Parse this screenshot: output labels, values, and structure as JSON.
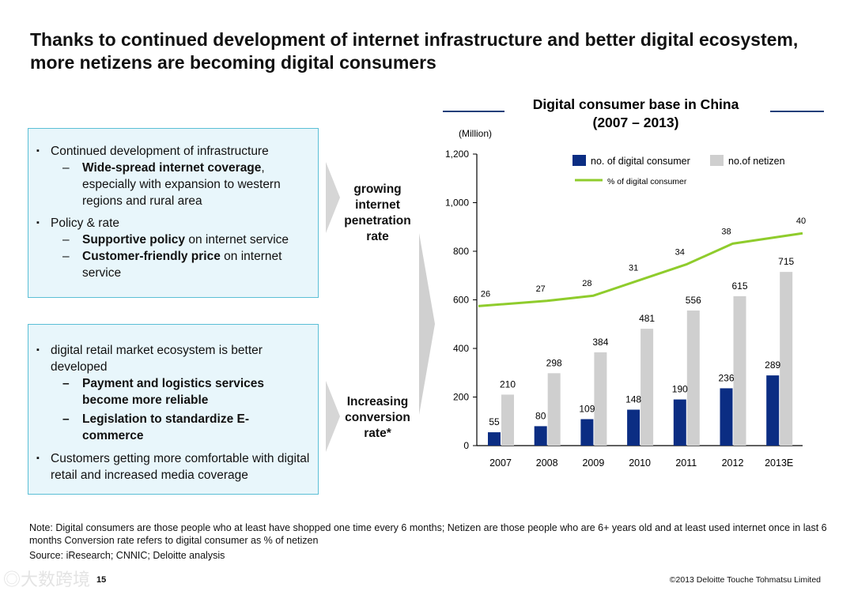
{
  "title": "Thanks to continued  development of internet infrastructure and better digital ecosystem, more netizens are becoming digital consumers",
  "box1": {
    "b1": "Continued development of infrastructure",
    "s1_bold": "Wide-spread internet coverage",
    "s1_rest": ", especially with expansion to western regions and rural area",
    "b2": "Policy & rate",
    "s2_bold": "Supportive policy",
    "s2_rest": " on internet service",
    "s3_bold": "Customer-friendly price",
    "s3_rest": " on internet service"
  },
  "box2": {
    "b1": "digital retail market ecosystem is better developed",
    "s1": "Payment and logistics services become more reliable",
    "s2": "Legislation to standardize E-commerce",
    "b2": "Customers getting more comfortable with digital retail and increased media coverage"
  },
  "arrow_labels": [
    "growing internet penetration rate",
    "Increasing conversion rate*"
  ],
  "chart_data": {
    "type": "bar",
    "title": "Digital consumer base  in China",
    "subtitle": "(2007 – 2013)",
    "ylabel": "(Million)",
    "ylim": [
      0,
      1200
    ],
    "yticks": [
      "0",
      "200",
      "400",
      "600",
      "800",
      "1,000",
      "1,200"
    ],
    "yticks_values": [
      0,
      200,
      400,
      600,
      800,
      1000,
      1200
    ],
    "categories": [
      "2007",
      "2008",
      "2009",
      "2010",
      "2011",
      "2012",
      "2013E"
    ],
    "series": [
      {
        "name": "no. of digital consumer",
        "type": "bar",
        "color": "#0b2d83",
        "values": [
          55,
          80,
          109,
          148,
          190,
          236,
          289
        ]
      },
      {
        "name": "no.of netizen",
        "type": "bar",
        "color": "#cfcfcf",
        "values": [
          210,
          298,
          384,
          481,
          556,
          615,
          715
        ]
      },
      {
        "name": "% of digital consumer",
        "type": "line",
        "color": "#8fcc2c",
        "values": [
          26,
          27,
          28,
          31,
          34,
          38,
          40
        ]
      }
    ],
    "legend": "top-right"
  },
  "note": "Note: Digital consumers are those people who at least have shopped one time every 6 months; Netizen are those people who are 6+ years old and at least used internet once in last 6 months Conversion rate refers to digital consumer as % of netizen",
  "source_label": "Source:",
  "source": "iResearch; CNNIC; Deloitte analysis",
  "page_number": "15",
  "copyright": "©2013 Deloitte Touche Tohmatsu Limited",
  "watermark": "大数跨境"
}
